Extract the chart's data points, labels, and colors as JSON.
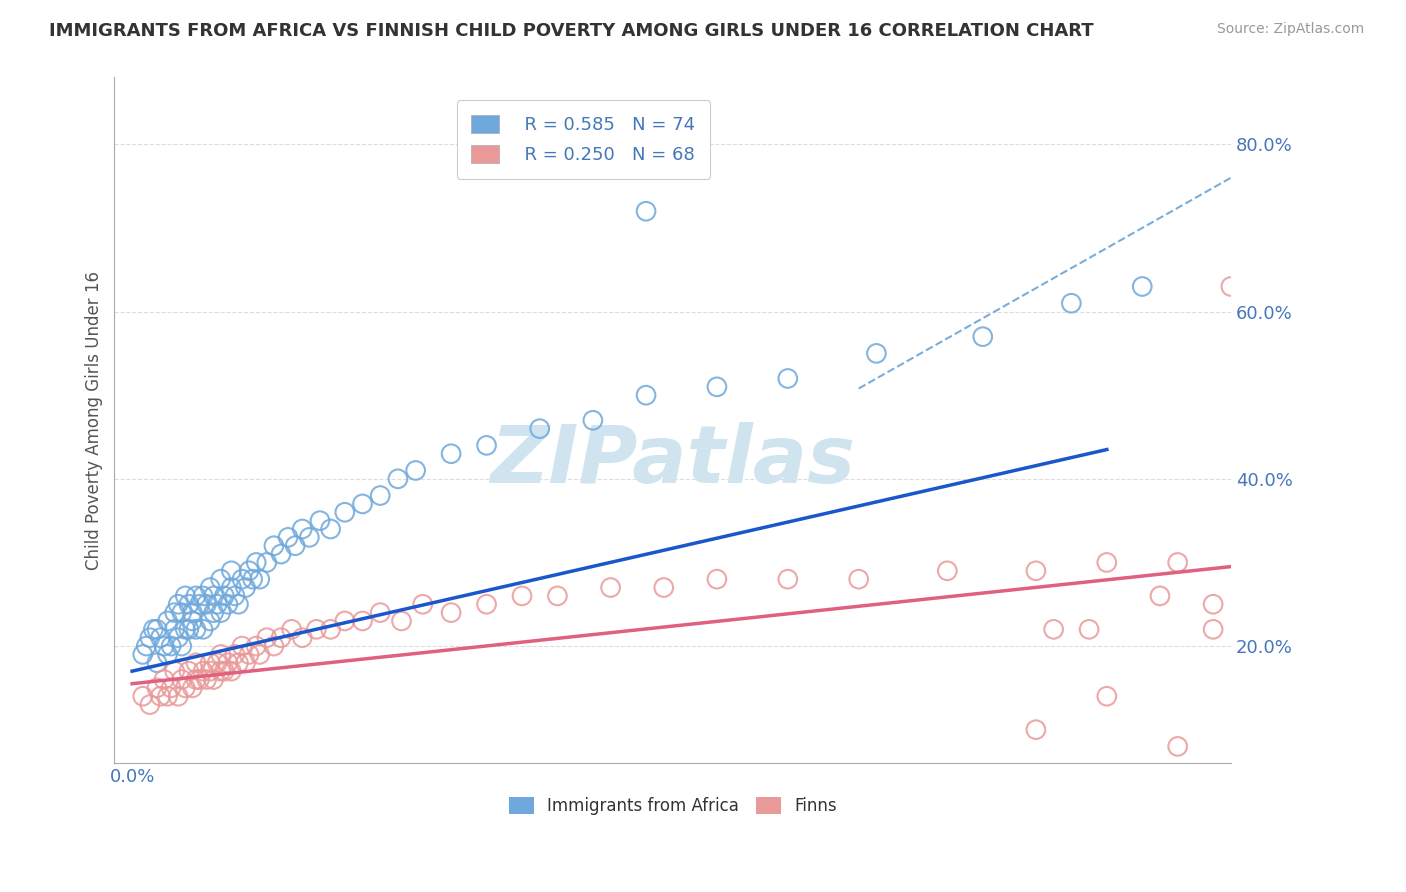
{
  "title": "IMMIGRANTS FROM AFRICA VS FINNISH CHILD POVERTY AMONG GIRLS UNDER 16 CORRELATION CHART",
  "source": "Source: ZipAtlas.com",
  "ylabel": "Child Poverty Among Girls Under 16",
  "xlim": [
    -0.005,
    0.31
  ],
  "ylim": [
    0.06,
    0.88
  ],
  "xticks": [
    0.0,
    0.05,
    0.1,
    0.15,
    0.2,
    0.25,
    0.3
  ],
  "xticklabels": [
    "0.0%",
    "",
    "",
    "",
    "",
    "",
    ""
  ],
  "yticks": [
    0.2,
    0.4,
    0.6,
    0.8
  ],
  "yticklabels": [
    "20.0%",
    "40.0%",
    "60.0%",
    "80.0%"
  ],
  "legend_labels": [
    "Immigrants from Africa",
    "Finns"
  ],
  "blue_R": "R = 0.585",
  "blue_N": "N = 74",
  "pink_R": "R = 0.250",
  "pink_N": "N = 68",
  "blue_color": "#6fa8dc",
  "pink_color": "#ea9999",
  "blue_line_color": "#1a56cc",
  "pink_line_color": "#e06080",
  "dash_line_color": "#7aaddc",
  "watermark_color": "#d0e4f0",
  "grid_color": "#dddddd",
  "axis_color": "#aaaaaa",
  "title_color": "#333333",
  "tick_color": "#4477bb",
  "blue_scatter_x": [
    0.003,
    0.004,
    0.005,
    0.006,
    0.007,
    0.007,
    0.008,
    0.009,
    0.01,
    0.01,
    0.011,
    0.012,
    0.012,
    0.013,
    0.013,
    0.014,
    0.014,
    0.015,
    0.015,
    0.016,
    0.016,
    0.017,
    0.017,
    0.018,
    0.018,
    0.019,
    0.02,
    0.02,
    0.021,
    0.022,
    0.022,
    0.023,
    0.023,
    0.024,
    0.025,
    0.025,
    0.026,
    0.027,
    0.028,
    0.028,
    0.029,
    0.03,
    0.031,
    0.032,
    0.033,
    0.034,
    0.035,
    0.036,
    0.038,
    0.04,
    0.042,
    0.044,
    0.046,
    0.048,
    0.05,
    0.053,
    0.056,
    0.06,
    0.065,
    0.07,
    0.075,
    0.08,
    0.09,
    0.1,
    0.115,
    0.13,
    0.145,
    0.165,
    0.185,
    0.21,
    0.24,
    0.265,
    0.285,
    0.145
  ],
  "blue_scatter_y": [
    0.19,
    0.2,
    0.21,
    0.22,
    0.18,
    0.22,
    0.21,
    0.2,
    0.19,
    0.23,
    0.2,
    0.22,
    0.24,
    0.21,
    0.25,
    0.2,
    0.24,
    0.22,
    0.26,
    0.22,
    0.25,
    0.23,
    0.24,
    0.22,
    0.26,
    0.25,
    0.22,
    0.26,
    0.25,
    0.23,
    0.27,
    0.24,
    0.26,
    0.25,
    0.24,
    0.28,
    0.26,
    0.25,
    0.27,
    0.29,
    0.26,
    0.25,
    0.28,
    0.27,
    0.29,
    0.28,
    0.3,
    0.28,
    0.3,
    0.32,
    0.31,
    0.33,
    0.32,
    0.34,
    0.33,
    0.35,
    0.34,
    0.36,
    0.37,
    0.38,
    0.4,
    0.41,
    0.43,
    0.44,
    0.46,
    0.47,
    0.5,
    0.51,
    0.52,
    0.55,
    0.57,
    0.61,
    0.63,
    0.72
  ],
  "pink_scatter_x": [
    0.003,
    0.005,
    0.007,
    0.008,
    0.009,
    0.01,
    0.011,
    0.012,
    0.013,
    0.014,
    0.015,
    0.016,
    0.017,
    0.018,
    0.018,
    0.019,
    0.02,
    0.021,
    0.022,
    0.022,
    0.023,
    0.024,
    0.025,
    0.025,
    0.026,
    0.027,
    0.028,
    0.029,
    0.03,
    0.031,
    0.032,
    0.033,
    0.035,
    0.036,
    0.038,
    0.04,
    0.042,
    0.045,
    0.048,
    0.052,
    0.056,
    0.06,
    0.065,
    0.07,
    0.076,
    0.082,
    0.09,
    0.1,
    0.11,
    0.12,
    0.135,
    0.15,
    0.165,
    0.185,
    0.205,
    0.23,
    0.255,
    0.275,
    0.295,
    0.31,
    0.27,
    0.29,
    0.305,
    0.255,
    0.275,
    0.295,
    0.305,
    0.26
  ],
  "pink_scatter_y": [
    0.14,
    0.13,
    0.15,
    0.14,
    0.16,
    0.14,
    0.15,
    0.17,
    0.14,
    0.16,
    0.15,
    0.17,
    0.15,
    0.16,
    0.18,
    0.16,
    0.17,
    0.16,
    0.18,
    0.17,
    0.16,
    0.18,
    0.17,
    0.19,
    0.17,
    0.18,
    0.17,
    0.19,
    0.18,
    0.2,
    0.18,
    0.19,
    0.2,
    0.19,
    0.21,
    0.2,
    0.21,
    0.22,
    0.21,
    0.22,
    0.22,
    0.23,
    0.23,
    0.24,
    0.23,
    0.25,
    0.24,
    0.25,
    0.26,
    0.26,
    0.27,
    0.27,
    0.28,
    0.28,
    0.28,
    0.29,
    0.29,
    0.3,
    0.3,
    0.63,
    0.22,
    0.26,
    0.22,
    0.1,
    0.14,
    0.08,
    0.25,
    0.22
  ],
  "blue_trend_x": [
    0.0,
    0.275
  ],
  "blue_trend_y": [
    0.17,
    0.435
  ],
  "pink_trend_x": [
    0.0,
    0.31
  ],
  "pink_trend_y": [
    0.155,
    0.295
  ],
  "dash_trend_x": [
    0.205,
    0.31
  ],
  "dash_trend_y": [
    0.508,
    0.76
  ],
  "figsize": [
    14.06,
    8.92
  ],
  "dpi": 100
}
